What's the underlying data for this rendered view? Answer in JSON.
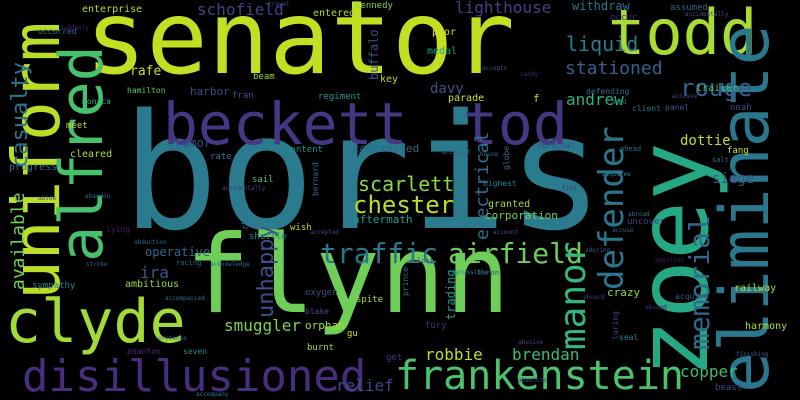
{
  "words": [
    {
      "text": "boris",
      "color": "#2a7b8e"
    },
    {
      "text": "senator",
      "color": "#c2df23"
    },
    {
      "text": "flynn",
      "color": "#6ece58"
    },
    {
      "text": "zoey",
      "color": "#25a884"
    },
    {
      "text": "uniform",
      "color": "#bade28"
    },
    {
      "text": "beckett",
      "color": "#453882"
    },
    {
      "text": "tod",
      "color": "#453882"
    },
    {
      "text": "todd",
      "color": "#a8db34"
    },
    {
      "text": "eliminate",
      "color": "#2a788e"
    },
    {
      "text": "alfred",
      "color": "#48c16e"
    },
    {
      "text": "clyde",
      "color": "#a2da37"
    },
    {
      "text": "disillusioned",
      "color": "#472f7d"
    },
    {
      "text": "frankenstein",
      "color": "#4cc26c"
    },
    {
      "text": "defender",
      "color": "#2a768e"
    },
    {
      "text": "traffic",
      "color": "#2a788e"
    },
    {
      "text": "airfield",
      "color": "#6ccd5a"
    },
    {
      "text": "manor",
      "color": "#35b779"
    },
    {
      "text": "memorial",
      "color": "#31688e"
    },
    {
      "text": "casualty",
      "color": "#2c738e"
    },
    {
      "text": "chester",
      "color": "#b8de29"
    },
    {
      "text": "scarlett",
      "color": "#8bd646"
    },
    {
      "text": "rouge",
      "color": "#34608d"
    },
    {
      "text": "liquid",
      "color": "#297b8e"
    },
    {
      "text": "stationed",
      "color": "#33628d"
    },
    {
      "text": "andrew",
      "color": "#2db27d"
    },
    {
      "text": "available",
      "color": "#73d056"
    },
    {
      "text": "unhappy",
      "color": "#3b518b"
    },
    {
      "text": "electrical",
      "color": "#2d718e"
    },
    {
      "text": "smuggler",
      "color": "#7ad151"
    },
    {
      "text": "robbie",
      "color": "#bddf26"
    },
    {
      "text": "brendan",
      "color": "#3bbb75"
    },
    {
      "text": "relief",
      "color": "#3e4989"
    },
    {
      "text": "ira",
      "color": "#38588c"
    },
    {
      "text": "lighthouse",
      "color": "#424086"
    },
    {
      "text": "schofield",
      "color": "#414487"
    },
    {
      "text": "copper",
      "color": "#3fbc73"
    },
    {
      "text": "siege",
      "color": "#39568c"
    },
    {
      "text": "dottie",
      "color": "#c0df25"
    },
    {
      "text": "davy",
      "color": "#3b528b"
    },
    {
      "text": "buffalo",
      "color": "#3b528b"
    },
    {
      "text": "rafe",
      "color": "#c8e020"
    },
    {
      "text": "harbor",
      "color": "#3e4a89"
    },
    {
      "text": "withdraw",
      "color": "#2b758e"
    },
    {
      "text": "enterprise",
      "color": "#b5de2b"
    },
    {
      "text": "rumor",
      "color": "#3e4989"
    },
    {
      "text": "controlled",
      "color": "#31688e"
    },
    {
      "text": "aftermath",
      "color": "#1fa088"
    },
    {
      "text": "operative",
      "color": "#31678e"
    },
    {
      "text": "ambitious",
      "color": "#9dd93b"
    },
    {
      "text": "trading",
      "color": "#1f978b"
    },
    {
      "text": "crazy",
      "color": "#93d741"
    },
    {
      "text": "orphan",
      "color": "#a5db36"
    },
    {
      "text": "parade",
      "color": "#c5e021"
    },
    {
      "text": "granted",
      "color": "#a5db36"
    },
    {
      "text": "corporation",
      "color": "#75d054"
    },
    {
      "text": "railway",
      "color": "#addc30"
    },
    {
      "text": "harmony",
      "color": "#b0dd2f"
    },
    {
      "text": "trailer",
      "color": "#44bf70"
    },
    {
      "text": "fang",
      "color": "#d0e11c"
    },
    {
      "text": "noah",
      "color": "#3f4788"
    },
    {
      "text": "f",
      "color": "#bade28"
    },
    {
      "text": "key",
      "color": "#bade28"
    },
    {
      "text": "poor",
      "color": "#cde11d"
    },
    {
      "text": "medal",
      "color": "#1f9e89"
    },
    {
      "text": "regiment",
      "color": "#1e9c89"
    },
    {
      "text": "entered",
      "color": "#a8db34"
    },
    {
      "text": "kennedy",
      "color": "#84d44b"
    },
    {
      "text": "beam",
      "color": "#9bd93c"
    },
    {
      "text": "fran",
      "color": "#3a548c"
    },
    {
      "text": "hamilton",
      "color": "#5ec962"
    },
    {
      "text": "monica",
      "color": "#2db27d"
    },
    {
      "text": "meet",
      "color": "#c0df25"
    },
    {
      "text": "progress",
      "color": "#2e6f8e"
    },
    {
      "text": "cleared",
      "color": "#b0dd2f"
    },
    {
      "text": "content",
      "color": "#21918c"
    },
    {
      "text": "rate",
      "color": "#2a768e"
    },
    {
      "text": "sail",
      "color": "#48c16e"
    },
    {
      "text": "wish",
      "color": "#bade28"
    },
    {
      "text": "shuttle",
      "color": "#26828e"
    },
    {
      "text": "rhett",
      "color": "#2c728e"
    },
    {
      "text": "bernard",
      "color": "#31688e"
    },
    {
      "text": "lying",
      "color": "#481a6c"
    },
    {
      "text": "oxygen",
      "color": "#3d4d8a"
    },
    {
      "text": "blake",
      "color": "#3b528b"
    },
    {
      "text": "burnt",
      "color": "#a5db36"
    },
    {
      "text": "spite",
      "color": "#addc30"
    },
    {
      "text": "fury",
      "color": "#472f7d"
    },
    {
      "text": "sympathy",
      "color": "#26828e"
    },
    {
      "text": "phantom",
      "color": "#482878"
    },
    {
      "text": "seven",
      "color": "#26828e"
    },
    {
      "text": "get",
      "color": "#453882"
    },
    {
      "text": "luring",
      "color": "#404688"
    },
    {
      "text": "seal",
      "color": "#26828e"
    },
    {
      "text": "beast",
      "color": "#3e4a89"
    },
    {
      "text": "client",
      "color": "#2d708e"
    },
    {
      "text": "occurred",
      "color": "#2e6e8e"
    },
    {
      "text": "gu",
      "color": "#c8e020"
    },
    {
      "text": "assumed",
      "color": "#35608d"
    },
    {
      "text": "occur",
      "color": "#482677"
    },
    {
      "text": "panel",
      "color": "#39568c"
    },
    {
      "text": "defending",
      "color": "#2f6c8e"
    },
    {
      "text": "terminal",
      "color": "#3e4a89"
    },
    {
      "text": "globe",
      "color": "#2e6f8e"
    },
    {
      "text": "highest",
      "color": "#25858e"
    },
    {
      "text": "acquire",
      "color": "#3b528b"
    },
    {
      "text": "abortion",
      "color": "#481f70"
    },
    {
      "text": "prince",
      "color": "#2f6b8e"
    },
    {
      "text": "racing",
      "color": "#31688e"
    },
    {
      "text": "pretense",
      "color": "#31688e"
    },
    {
      "text": "lost",
      "color": "#3f4788"
    },
    {
      "text": "abusive",
      "color": "#404688"
    },
    {
      "text": "accepted",
      "color": "#3f4889"
    },
    {
      "text": "accidentally",
      "color": "#3b528b"
    },
    {
      "text": "ahead",
      "color": "#2d718e"
    },
    {
      "text": "salt",
      "color": "#31688e"
    },
    {
      "text": "abroad",
      "color": "#2a788e"
    },
    {
      "text": "acknowledge",
      "color": "#2e6e8e"
    },
    {
      "text": "account",
      "color": "#38598c"
    },
    {
      "text": "accessible",
      "color": "#23888e"
    },
    {
      "text": "accompanied",
      "color": "#2c718e"
    },
    {
      "text": "abide",
      "color": "#3b518b"
    },
    {
      "text": "abandon",
      "color": "#31688e"
    },
    {
      "text": "accuse",
      "color": "#34618d"
    },
    {
      "text": "achieve",
      "color": "#3f4788"
    },
    {
      "text": "uncover",
      "color": "#433e85"
    },
    {
      "text": "accidentally",
      "color": "#414487"
    },
    {
      "text": "travel",
      "color": "#38588c"
    },
    {
      "text": "abduction",
      "color": "#31688e"
    },
    {
      "text": "abused",
      "color": "#482677"
    },
    {
      "text": "tiet",
      "color": "#472f7d"
    },
    {
      "text": "finishing",
      "color": "#31688e"
    },
    {
      "text": "stroke",
      "color": "#34618d"
    },
    {
      "text": "suddenly",
      "color": "#482475"
    },
    {
      "text": "aboard",
      "color": "#443983"
    },
    {
      "text": "acquires",
      "color": "#26828e"
    },
    {
      "text": "acid",
      "color": "#2e6e8e"
    },
    {
      "text": "absolute",
      "color": "#3e4a89"
    },
    {
      "text": "accepts",
      "color": "#3b528b"
    },
    {
      "text": "candy",
      "color": "#482878"
    },
    {
      "text": "adoring",
      "color": "#33638d"
    },
    {
      "text": "baron",
      "color": "#3e4989"
    },
    {
      "text": "house",
      "color": "#2f6c8e"
    },
    {
      "text": "accident",
      "color": "#31688e"
    },
    {
      "text": "accompany",
      "color": "#2a788e"
    }
  ]
}
